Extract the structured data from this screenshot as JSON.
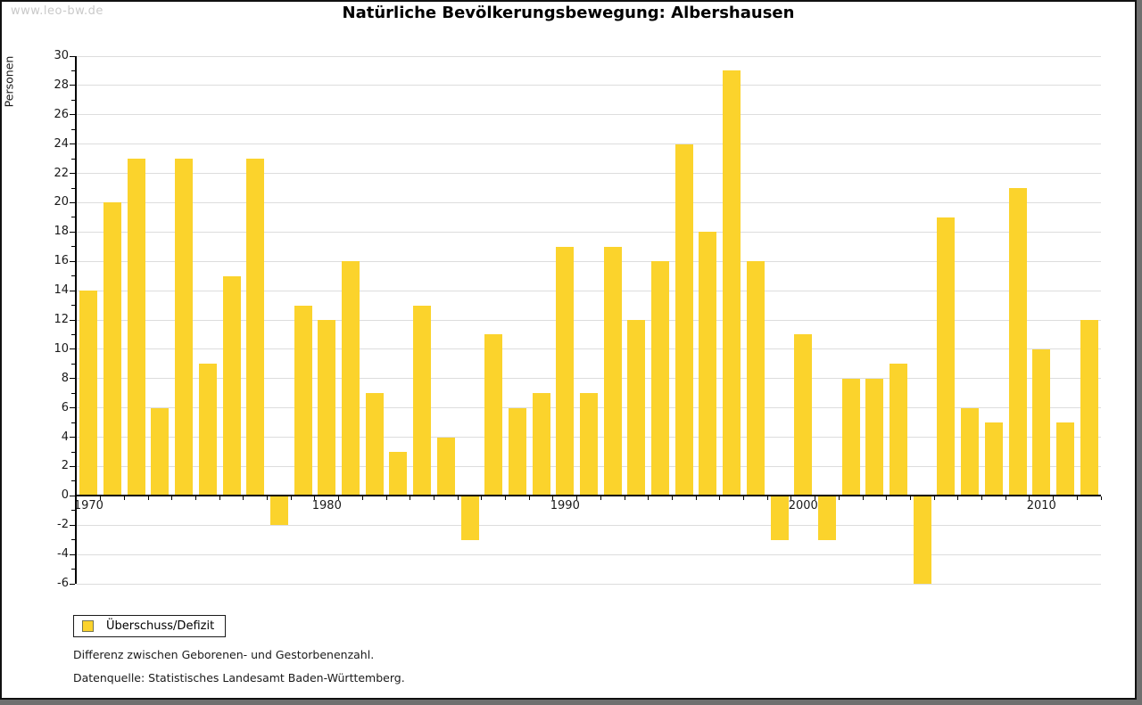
{
  "watermark": "www.leo-bw.de",
  "title": "Natürliche Bevölkerungsbewegung: Albershausen",
  "legend": {
    "label": "Überschuss/Defizit"
  },
  "footnotes": {
    "line1": "Differenz zwischen Geborenen- und Gestorbenenzahl.",
    "line2": "Datenquelle: Statistisches Landesamt Baden-Württemberg."
  },
  "colors": {
    "bar": "#FBD32C",
    "gridline": "#DDDDDD",
    "axis": "#000000",
    "watermark": "#C9C9C9",
    "frame_shadow": "#6F6F6F"
  },
  "chart_data": {
    "type": "bar",
    "title": "Natürliche Bevölkerungsbewegung: Albershausen",
    "xlabel": "",
    "ylabel": "Personen",
    "ylim": [
      -6,
      30
    ],
    "ytick_step": 2,
    "grid": true,
    "legend_position": "bottom-left",
    "series_name": "Überschuss/Defizit",
    "categories": [
      1970,
      1971,
      1972,
      1973,
      1974,
      1975,
      1976,
      1977,
      1978,
      1979,
      1980,
      1981,
      1982,
      1983,
      1984,
      1985,
      1986,
      1987,
      1988,
      1989,
      1990,
      1991,
      1992,
      1993,
      1994,
      1995,
      1996,
      1997,
      1998,
      1999,
      2000,
      2001,
      2002,
      2003,
      2004,
      2005,
      2006,
      2007,
      2008,
      2009,
      2010,
      2011,
      2012
    ],
    "values": [
      14,
      20,
      23,
      6,
      23,
      9,
      15,
      23,
      -2,
      13,
      12,
      16,
      7,
      3,
      13,
      4,
      -3,
      11,
      6,
      7,
      17,
      7,
      17,
      12,
      16,
      24,
      18,
      29,
      16,
      -3,
      11,
      -3,
      8,
      8,
      9,
      -6,
      19,
      6,
      5,
      21,
      10,
      5,
      12
    ],
    "xtick_labels": [
      1970,
      1980,
      1990,
      2000,
      2010
    ]
  }
}
